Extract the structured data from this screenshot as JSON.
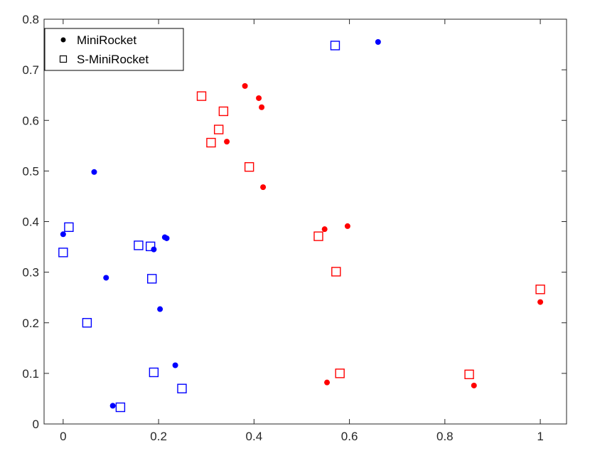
{
  "chart_data": {
    "type": "scatter",
    "title": "",
    "xlabel": "",
    "ylabel": "",
    "xlim": [
      -0.04,
      1.055
    ],
    "ylim": [
      0,
      0.8
    ],
    "grid": false,
    "legend_position": "top-left",
    "x_ticks": [
      {
        "value": 0,
        "label": "0"
      },
      {
        "value": 0.2,
        "label": "0.2"
      },
      {
        "value": 0.4,
        "label": "0.4"
      },
      {
        "value": 0.6,
        "label": "0.6"
      },
      {
        "value": 0.8,
        "label": "0.8"
      },
      {
        "value": 1,
        "label": "1"
      }
    ],
    "y_ticks": [
      {
        "value": 0,
        "label": "0"
      },
      {
        "value": 0.1,
        "label": "0.1"
      },
      {
        "value": 0.2,
        "label": "0.2"
      },
      {
        "value": 0.3,
        "label": "0.3"
      },
      {
        "value": 0.4,
        "label": "0.4"
      },
      {
        "value": 0.5,
        "label": "0.5"
      },
      {
        "value": 0.6,
        "label": "0.6"
      },
      {
        "value": 0.7,
        "label": "0.7"
      },
      {
        "value": 0.8,
        "label": "0.8"
      }
    ],
    "colors": {
      "blue": "#0000ff",
      "red": "#ff0000",
      "axis": "#262626",
      "legend_marker": "#000000"
    },
    "series": [
      {
        "name": "MiniRocket",
        "marker": "filled-circle",
        "points": [
          {
            "x": 0.66,
            "y": 0.755,
            "color": "#0000ff"
          },
          {
            "x": 0.065,
            "y": 0.498,
            "color": "#0000ff"
          },
          {
            "x": 0.0,
            "y": 0.375,
            "color": "#0000ff"
          },
          {
            "x": 0.213,
            "y": 0.369,
            "color": "#0000ff"
          },
          {
            "x": 0.217,
            "y": 0.367,
            "color": "#0000ff"
          },
          {
            "x": 0.19,
            "y": 0.345,
            "color": "#0000ff"
          },
          {
            "x": 0.09,
            "y": 0.289,
            "color": "#0000ff"
          },
          {
            "x": 0.203,
            "y": 0.227,
            "color": "#0000ff"
          },
          {
            "x": 0.235,
            "y": 0.116,
            "color": "#0000ff"
          },
          {
            "x": 0.104,
            "y": 0.036,
            "color": "#0000ff"
          },
          {
            "x": 0.381,
            "y": 0.668,
            "color": "#ff0000"
          },
          {
            "x": 0.41,
            "y": 0.644,
            "color": "#ff0000"
          },
          {
            "x": 0.416,
            "y": 0.626,
            "color": "#ff0000"
          },
          {
            "x": 0.343,
            "y": 0.558,
            "color": "#ff0000"
          },
          {
            "x": 0.419,
            "y": 0.468,
            "color": "#ff0000"
          },
          {
            "x": 0.596,
            "y": 0.391,
            "color": "#ff0000"
          },
          {
            "x": 0.548,
            "y": 0.385,
            "color": "#ff0000"
          },
          {
            "x": 1.0,
            "y": 0.241,
            "color": "#ff0000"
          },
          {
            "x": 0.553,
            "y": 0.082,
            "color": "#ff0000"
          },
          {
            "x": 0.861,
            "y": 0.076,
            "color": "#ff0000"
          }
        ]
      },
      {
        "name": "S-MiniRocket",
        "marker": "open-square",
        "points": [
          {
            "x": 0.57,
            "y": 0.748,
            "color": "#0000ff"
          },
          {
            "x": 0.012,
            "y": 0.389,
            "color": "#0000ff"
          },
          {
            "x": 0.0,
            "y": 0.339,
            "color": "#0000ff"
          },
          {
            "x": 0.158,
            "y": 0.353,
            "color": "#0000ff"
          },
          {
            "x": 0.183,
            "y": 0.351,
            "color": "#0000ff"
          },
          {
            "x": 0.186,
            "y": 0.287,
            "color": "#0000ff"
          },
          {
            "x": 0.05,
            "y": 0.2,
            "color": "#0000ff"
          },
          {
            "x": 0.19,
            "y": 0.102,
            "color": "#0000ff"
          },
          {
            "x": 0.249,
            "y": 0.07,
            "color": "#0000ff"
          },
          {
            "x": 0.12,
            "y": 0.033,
            "color": "#0000ff"
          },
          {
            "x": 0.29,
            "y": 0.648,
            "color": "#ff0000"
          },
          {
            "x": 0.336,
            "y": 0.618,
            "color": "#ff0000"
          },
          {
            "x": 0.326,
            "y": 0.582,
            "color": "#ff0000"
          },
          {
            "x": 0.31,
            "y": 0.556,
            "color": "#ff0000"
          },
          {
            "x": 0.39,
            "y": 0.508,
            "color": "#ff0000"
          },
          {
            "x": 0.535,
            "y": 0.371,
            "color": "#ff0000"
          },
          {
            "x": 0.572,
            "y": 0.301,
            "color": "#ff0000"
          },
          {
            "x": 1.0,
            "y": 0.266,
            "color": "#ff0000"
          },
          {
            "x": 0.58,
            "y": 0.1,
            "color": "#ff0000"
          },
          {
            "x": 0.851,
            "y": 0.098,
            "color": "#ff0000"
          }
        ]
      }
    ]
  }
}
